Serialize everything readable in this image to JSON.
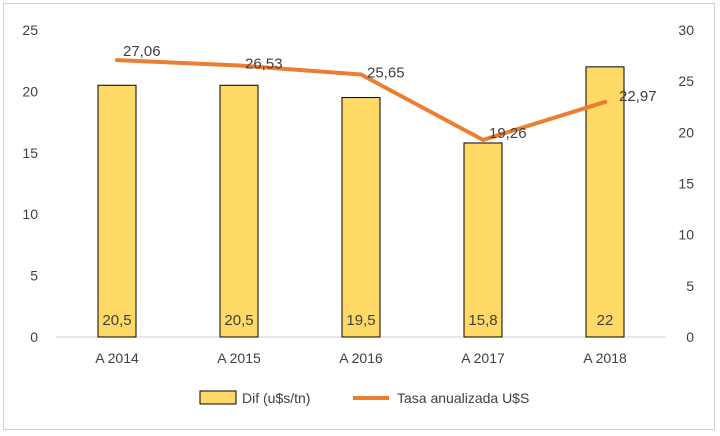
{
  "chart_data": {
    "type": "bar",
    "categories": [
      "A 2014",
      "A 2015",
      "A 2016",
      "A 2017",
      "A 2018"
    ],
    "series": [
      {
        "name": "Dif (u$s/tn)",
        "kind": "bar",
        "axis": "left",
        "values": [
          20.5,
          20.5,
          19.5,
          15.8,
          22
        ],
        "labels": [
          "20,5",
          "20,5",
          "19,5",
          "15,8",
          "22"
        ],
        "color": "#FFD966",
        "stroke": "#000000"
      },
      {
        "name": "Tasa anualizada U$S",
        "kind": "line",
        "axis": "right",
        "values": [
          27.06,
          26.53,
          25.65,
          19.26,
          22.97
        ],
        "labels": [
          "27,06",
          "26,53",
          "25,65",
          "19,26",
          "22,97"
        ],
        "color": "#ED7D31"
      }
    ],
    "y_left": {
      "min": 0,
      "max": 25,
      "ticks": [
        "0",
        "5",
        "10",
        "15",
        "20",
        "25"
      ]
    },
    "y_right": {
      "min": 0,
      "max": 30,
      "ticks": [
        "0",
        "5",
        "10",
        "15",
        "20",
        "25",
        "30"
      ]
    },
    "grid": false,
    "legend_position": "bottom"
  }
}
